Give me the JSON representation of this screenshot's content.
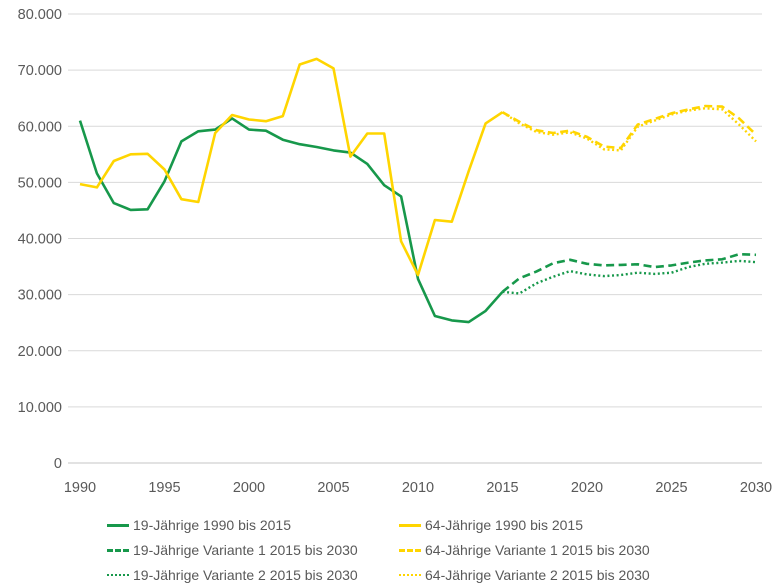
{
  "background": "#ffffff",
  "colors": {
    "green": "#17984b",
    "yellow": "#ffd500",
    "gridline": "#d9d9d9",
    "axis_line": "#c6c6c6",
    "axis_text": "#595959"
  },
  "chart_data": {
    "type": "line",
    "title": "",
    "xlabel": "",
    "ylabel": "",
    "grid": "horizontal",
    "legend_position": "bottom",
    "x_axis": {
      "range": [
        1990,
        2030
      ],
      "ticks": [
        1990,
        1995,
        2000,
        2005,
        2010,
        2015,
        2020,
        2025,
        2030
      ],
      "tick_labels": [
        "1990",
        "1995",
        "2000",
        "2005",
        "2010",
        "2015",
        "2020",
        "2025",
        "2030"
      ]
    },
    "y_axis": {
      "range": [
        0,
        80000
      ],
      "ticks": [
        0,
        10000,
        20000,
        30000,
        40000,
        50000,
        60000,
        70000,
        80000
      ],
      "tick_labels": [
        "0",
        "10.000",
        "20.000",
        "30.000",
        "40.000",
        "50.000",
        "60.000",
        "70.000",
        "80.000"
      ]
    },
    "series": [
      {
        "name": "19-Jährige 1990 bis 2015",
        "color": "#17984b",
        "style": "solid",
        "x_start": 1990,
        "x_step": 1,
        "values": [
          61000,
          51600,
          46300,
          45100,
          45200,
          50200,
          57300,
          59100,
          59400,
          61400,
          59400,
          59200,
          57600,
          56800,
          56300,
          55700,
          55300,
          53300,
          49500,
          47500,
          32800,
          26200,
          25400,
          25100,
          27100,
          30500
        ]
      },
      {
        "name": "64-Jährige 1990 bis 2015",
        "color": "#ffd500",
        "style": "solid",
        "x_start": 1990,
        "x_step": 1,
        "values": [
          49700,
          49100,
          53800,
          55000,
          55100,
          52300,
          47000,
          46500,
          58800,
          62000,
          61200,
          60900,
          61800,
          71000,
          72000,
          70300,
          54600,
          58700,
          58700,
          39500,
          33500,
          43300,
          43000,
          52000,
          60500,
          62500
        ]
      },
      {
        "name": "19-Jährige Variante 1 2015 bis 2030",
        "color": "#17984b",
        "style": "dashed",
        "x_start": 2015,
        "x_step": 1,
        "values": [
          30500,
          32900,
          34100,
          35600,
          36200,
          35500,
          35200,
          35300,
          35400,
          34900,
          35200,
          35700,
          36100,
          36300,
          37200,
          37100
        ]
      },
      {
        "name": "64-Jährige Variante 1 2015 bis 2030",
        "color": "#ffd500",
        "style": "dashed",
        "x_start": 2015,
        "x_step": 1,
        "values": [
          62500,
          60800,
          59300,
          58800,
          59200,
          58100,
          56400,
          56100,
          60300,
          61300,
          62300,
          63000,
          63600,
          63500,
          61400,
          58500
        ]
      },
      {
        "name": "19-Jährige Variante 2 2015 bis 2030",
        "color": "#17984b",
        "style": "dotted",
        "x_start": 2015,
        "x_step": 1,
        "values": [
          30500,
          30200,
          32000,
          33200,
          34200,
          33600,
          33300,
          33500,
          33900,
          33700,
          33900,
          34900,
          35500,
          35700,
          36000,
          35800
        ]
      },
      {
        "name": "64-Jährige Variante 2 2015 bis 2030",
        "color": "#ffd500",
        "style": "dotted",
        "x_start": 2015,
        "x_step": 1,
        "values": [
          62500,
          60500,
          59000,
          58500,
          58900,
          57800,
          55900,
          55700,
          59900,
          61000,
          62100,
          62800,
          63200,
          63000,
          60300,
          57300
        ]
      }
    ]
  },
  "legend": {
    "items": [
      {
        "label": "19-Jährige 1990 bis 2015",
        "color": "#17984b",
        "style": "solid"
      },
      {
        "label": "64-Jährige 1990 bis 2015",
        "color": "#ffd500",
        "style": "solid"
      },
      {
        "label": "19-Jährige Variante 1 2015 bis 2030",
        "color": "#17984b",
        "style": "dashed"
      },
      {
        "label": "64-Jährige Variante 1 2015 bis 2030",
        "color": "#ffd500",
        "style": "dashed"
      },
      {
        "label": "19-Jährige Variante 2 2015 bis 2030",
        "color": "#17984b",
        "style": "dotted"
      },
      {
        "label": "64-Jährige Variante 2 2015 bis 2030",
        "color": "#ffd500",
        "style": "dotted"
      }
    ]
  }
}
